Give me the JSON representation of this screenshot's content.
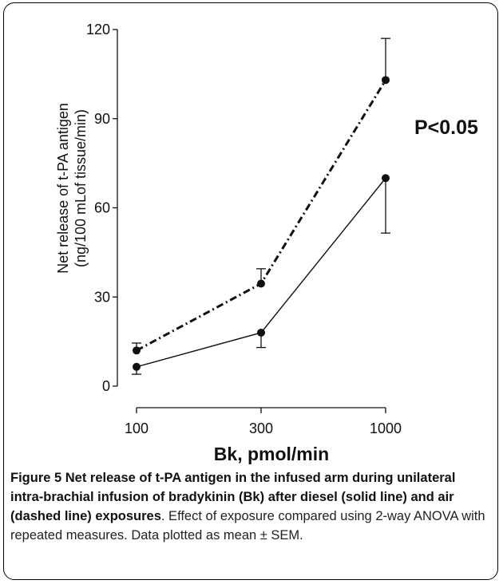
{
  "chart_data": {
    "type": "line",
    "x_categories": [
      "100",
      "300",
      "1000"
    ],
    "xlabel": "Bk, pmol/min",
    "ylabel_line1": "Net release of t-PA antigen",
    "ylabel_line2": "(ng/100 mLof tissue/min)",
    "yticks": [
      "0",
      "30",
      "60",
      "90",
      "120"
    ],
    "ylim": [
      0,
      120
    ],
    "annotation": "P<0.05",
    "series": [
      {
        "style": "solid",
        "values": [
          6.5,
          18.0,
          70.0
        ],
        "sem_lower": [
          2.5,
          5.0,
          18.5
        ],
        "sem_upper": [
          0,
          0,
          0
        ]
      },
      {
        "style": "dashed",
        "values": [
          12.0,
          34.5,
          103.0
        ],
        "sem_lower": [
          0,
          0,
          0
        ],
        "sem_upper": [
          2.5,
          5.0,
          14.0
        ]
      }
    ]
  },
  "caption": {
    "title": "Figure 5 Net release of t-PA antigen in the infused arm during unilateral intra-brachial infusion of bradykinin (Bk) after diesel (solid line) and air (dashed line) exposures",
    "body": ". Effect of exposure compared using 2-way ANOVA with repeated measures. Data plotted as mean ± SEM."
  }
}
